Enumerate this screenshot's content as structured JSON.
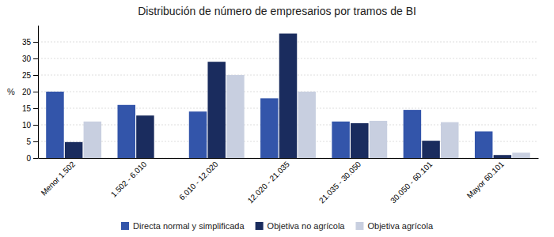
{
  "chart_data": {
    "type": "bar",
    "title": "Distribución de número de empresarios por tramos de BI",
    "categories": [
      "Menor 1.502",
      "1.502 - 6.010",
      "6.010 - 12.020",
      "12.020 - 21.035",
      "21.035 - 30.050",
      "30.050 - 60.101",
      "Mayor 60.101"
    ],
    "series": [
      {
        "name": "Directa normal y simplificada",
        "color": "#3355aa",
        "values": [
          20,
          16,
          14,
          18,
          11,
          14.5,
          8
        ]
      },
      {
        "name": "Objetiva no agrícola",
        "color": "#1a2c5e",
        "values": [
          4.8,
          12.8,
          29,
          37.5,
          10.5,
          5.2,
          0.9
        ]
      },
      {
        "name": "Objetiva agrícola",
        "color": "#c8cfe0",
        "values": [
          11,
          0,
          25,
          20,
          11.2,
          10.8,
          1.6
        ]
      }
    ],
    "ylabel": "%",
    "ylim": [
      0,
      40
    ],
    "yticks": [
      0,
      5,
      10,
      15,
      20,
      25,
      30,
      35
    ],
    "grid": true,
    "legend": "bottom"
  }
}
